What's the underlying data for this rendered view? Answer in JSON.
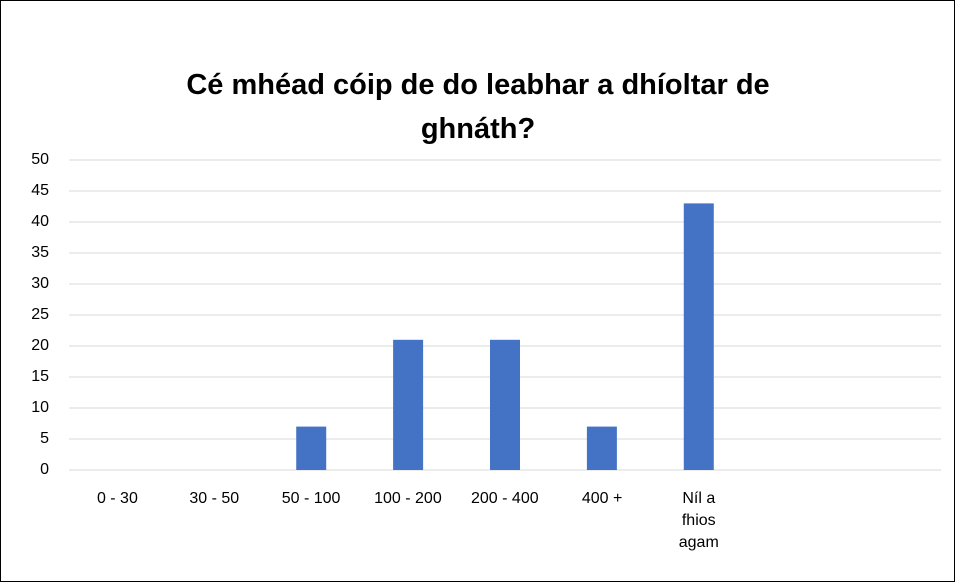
{
  "chart_data": {
    "type": "bar",
    "title": "Cé mhéad cóip de do leabhar a dhíoltar de ghnáth?",
    "categories": [
      "0 - 30",
      "30 - 50",
      "50 - 100",
      "100 - 200",
      "200 - 400",
      "400 +",
      "Níl a fhios agam",
      null,
      null
    ],
    "values": [
      0,
      0,
      7,
      21,
      21,
      7,
      43,
      null,
      null
    ],
    "color": "#4472c4",
    "ylim": [
      0,
      50
    ],
    "yticks": [
      0,
      5,
      10,
      15,
      20,
      25,
      30,
      35,
      40,
      45,
      50
    ],
    "grid": true
  }
}
